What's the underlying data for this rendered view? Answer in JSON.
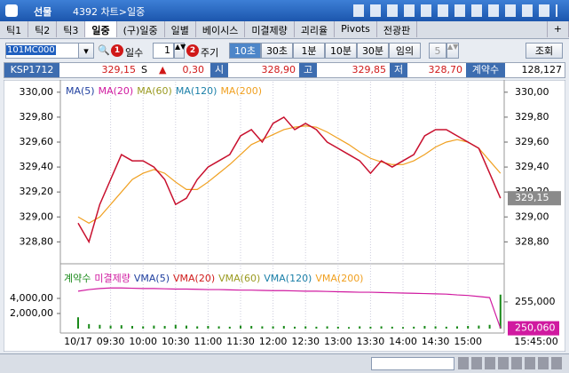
{
  "window": {
    "menu": "선물",
    "title": "4392 차트>일중"
  },
  "tabs": [
    "틱1",
    "틱2",
    "틱3",
    "일중",
    "(구)일중",
    "일별",
    "베이시스",
    "미결제량",
    "괴리율",
    "Pivots",
    "전광판"
  ],
  "tab_add": "+",
  "toolbar": {
    "code": "101MC000",
    "badge1": "1",
    "days_label": "일수",
    "days": "1",
    "badge2": "2",
    "period_label": "주기",
    "periods": [
      "10초",
      "30초",
      "1분",
      "10분",
      "30분",
      "임의"
    ],
    "count": "5",
    "query": "조회"
  },
  "quote": {
    "symbol": "KSP1712",
    "price": "329,15",
    "flag": "S",
    "arrow": "▲",
    "change": "0,30",
    "open_label": "시",
    "open": "328,90",
    "high_label": "고",
    "high": "329,85",
    "low_label": "저",
    "low": "328,70",
    "volume_label": "계약수",
    "volume": "128,127"
  },
  "chart": {
    "price_legend": [
      {
        "label": "MA(5)",
        "color": "#1f3f9f"
      },
      {
        "label": "MA(20)",
        "color": "#d01aa0"
      },
      {
        "label": "MA(60)",
        "color": "#9a9a20"
      },
      {
        "label": "MA(120)",
        "color": "#1a7fa8"
      },
      {
        "label": "MA(200)",
        "color": "#f0a020"
      }
    ],
    "ylim": [
      328.66,
      330.07
    ],
    "yticks": [
      {
        "value": 330,
        "label": "330,00"
      },
      {
        "value": 329.8,
        "label": "329,80"
      },
      {
        "value": 329.6,
        "label": "329,60"
      },
      {
        "value": 329.4,
        "label": "329,40"
      },
      {
        "value": 329.2,
        "label": "329,20"
      },
      {
        "value": 329,
        "label": "329,00"
      },
      {
        "value": 328.8,
        "label": "328,80"
      }
    ],
    "price_color": "#c8102e",
    "price": [
      328.95,
      328.8,
      329.1,
      329.3,
      329.5,
      329.45,
      329.45,
      329.4,
      329.3,
      329.1,
      329.15,
      329.3,
      329.4,
      329.45,
      329.5,
      329.65,
      329.7,
      329.6,
      329.75,
      329.8,
      329.7,
      329.75,
      329.7,
      329.6,
      329.55,
      329.5,
      329.45,
      329.35,
      329.45,
      329.4,
      329.45,
      329.5,
      329.65,
      329.7,
      329.7,
      329.65,
      329.6,
      329.55,
      329.35,
      329.15
    ],
    "ma_color": "#f0a020",
    "ma": [
      329.0,
      328.95,
      329.0,
      329.1,
      329.2,
      329.3,
      329.35,
      329.38,
      329.35,
      329.28,
      329.22,
      329.22,
      329.28,
      329.35,
      329.42,
      329.5,
      329.58,
      329.62,
      329.66,
      329.7,
      329.72,
      329.73,
      329.72,
      329.68,
      329.63,
      329.58,
      329.52,
      329.47,
      329.44,
      329.42,
      329.42,
      329.45,
      329.5,
      329.56,
      329.6,
      329.62,
      329.6,
      329.55,
      329.45,
      329.35
    ],
    "current": {
      "value": 329.15,
      "label": "329,15"
    },
    "volume_legend": [
      {
        "label": "계약수",
        "color": "#1a8a1a"
      },
      {
        "label": "미결제량",
        "color": "#d01aa0"
      },
      {
        "label": "VMA(5)",
        "color": "#1f3f9f"
      },
      {
        "label": "VMA(20)",
        "color": "#d01a1a"
      },
      {
        "label": "VMA(60)",
        "color": "#9a9a20"
      },
      {
        "label": "VMA(120)",
        "color": "#1a7fa8"
      },
      {
        "label": "VMA(200)",
        "color": "#f0a020"
      }
    ],
    "vol_ylim": [
      0,
      8000
    ],
    "vol_yticks": [
      {
        "value": 4000,
        "label": "4,000,00"
      },
      {
        "value": 2000,
        "label": "2,000,00"
      }
    ],
    "volume_color": "#1a8a1a",
    "volume": [
      1500,
      600,
      500,
      400,
      450,
      350,
      300,
      400,
      350,
      500,
      400,
      300,
      350,
      300,
      250,
      400,
      350,
      300,
      300,
      350,
      250,
      300,
      250,
      300,
      250,
      200,
      300,
      250,
      300,
      250,
      200,
      250,
      350,
      300,
      250,
      300,
      350,
      400,
      500,
      4500
    ],
    "oi_ylim": [
      250000,
      261300
    ],
    "oi_yticks": [
      {
        "value": 255000,
        "label": "255,000"
      }
    ],
    "oi_color": "#d01aa0",
    "open_interest": [
      257000,
      257300,
      257500,
      257600,
      257600,
      257550,
      257500,
      257500,
      257450,
      257400,
      257400,
      257350,
      257300,
      257300,
      257250,
      257200,
      257200,
      257150,
      257100,
      257100,
      257050,
      257000,
      257000,
      256950,
      256900,
      256850,
      256800,
      256800,
      256750,
      256700,
      256650,
      256600,
      256550,
      256500,
      256450,
      256300,
      256200,
      256000,
      255800,
      250060
    ],
    "oi_current": {
      "value": 250060,
      "label": "250,060"
    },
    "xticks": [
      "10/17",
      "09:30",
      "10:00",
      "10:30",
      "11:00",
      "11:30",
      "12:00",
      "12:30",
      "13:00",
      "13:30",
      "14:00",
      "14:30",
      "15:00"
    ],
    "x_end": "15:45:00"
  }
}
